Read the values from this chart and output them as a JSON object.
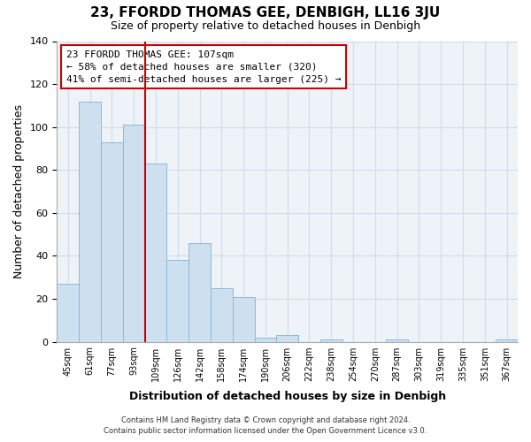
{
  "title": "23, FFORDD THOMAS GEE, DENBIGH, LL16 3JU",
  "subtitle": "Size of property relative to detached houses in Denbigh",
  "xlabel": "Distribution of detached houses by size in Denbigh",
  "ylabel": "Number of detached properties",
  "bar_labels": [
    "45sqm",
    "61sqm",
    "77sqm",
    "93sqm",
    "109sqm",
    "126sqm",
    "142sqm",
    "158sqm",
    "174sqm",
    "190sqm",
    "206sqm",
    "222sqm",
    "238sqm",
    "254sqm",
    "270sqm",
    "287sqm",
    "303sqm",
    "319sqm",
    "335sqm",
    "351sqm",
    "367sqm"
  ],
  "bar_values": [
    27,
    112,
    93,
    101,
    83,
    38,
    46,
    25,
    21,
    2,
    3,
    0,
    1,
    0,
    0,
    1,
    0,
    0,
    0,
    0,
    1
  ],
  "bar_color": "#cce0f0",
  "bar_edge_color": "#90b8d8",
  "vline_color": "#cc0000",
  "ylim": [
    0,
    140
  ],
  "yticks": [
    0,
    20,
    40,
    60,
    80,
    100,
    120,
    140
  ],
  "annotation_title": "23 FFORDD THOMAS GEE: 107sqm",
  "annotation_line1": "← 58% of detached houses are smaller (320)",
  "annotation_line2": "41% of semi-detached houses are larger (225) →",
  "footer_line1": "Contains HM Land Registry data © Crown copyright and database right 2024.",
  "footer_line2": "Contains public sector information licensed under the Open Government Licence v3.0.",
  "grid_color": "#d0dce8",
  "background_color": "#ffffff",
  "plot_bg_color": "#eef3f8"
}
